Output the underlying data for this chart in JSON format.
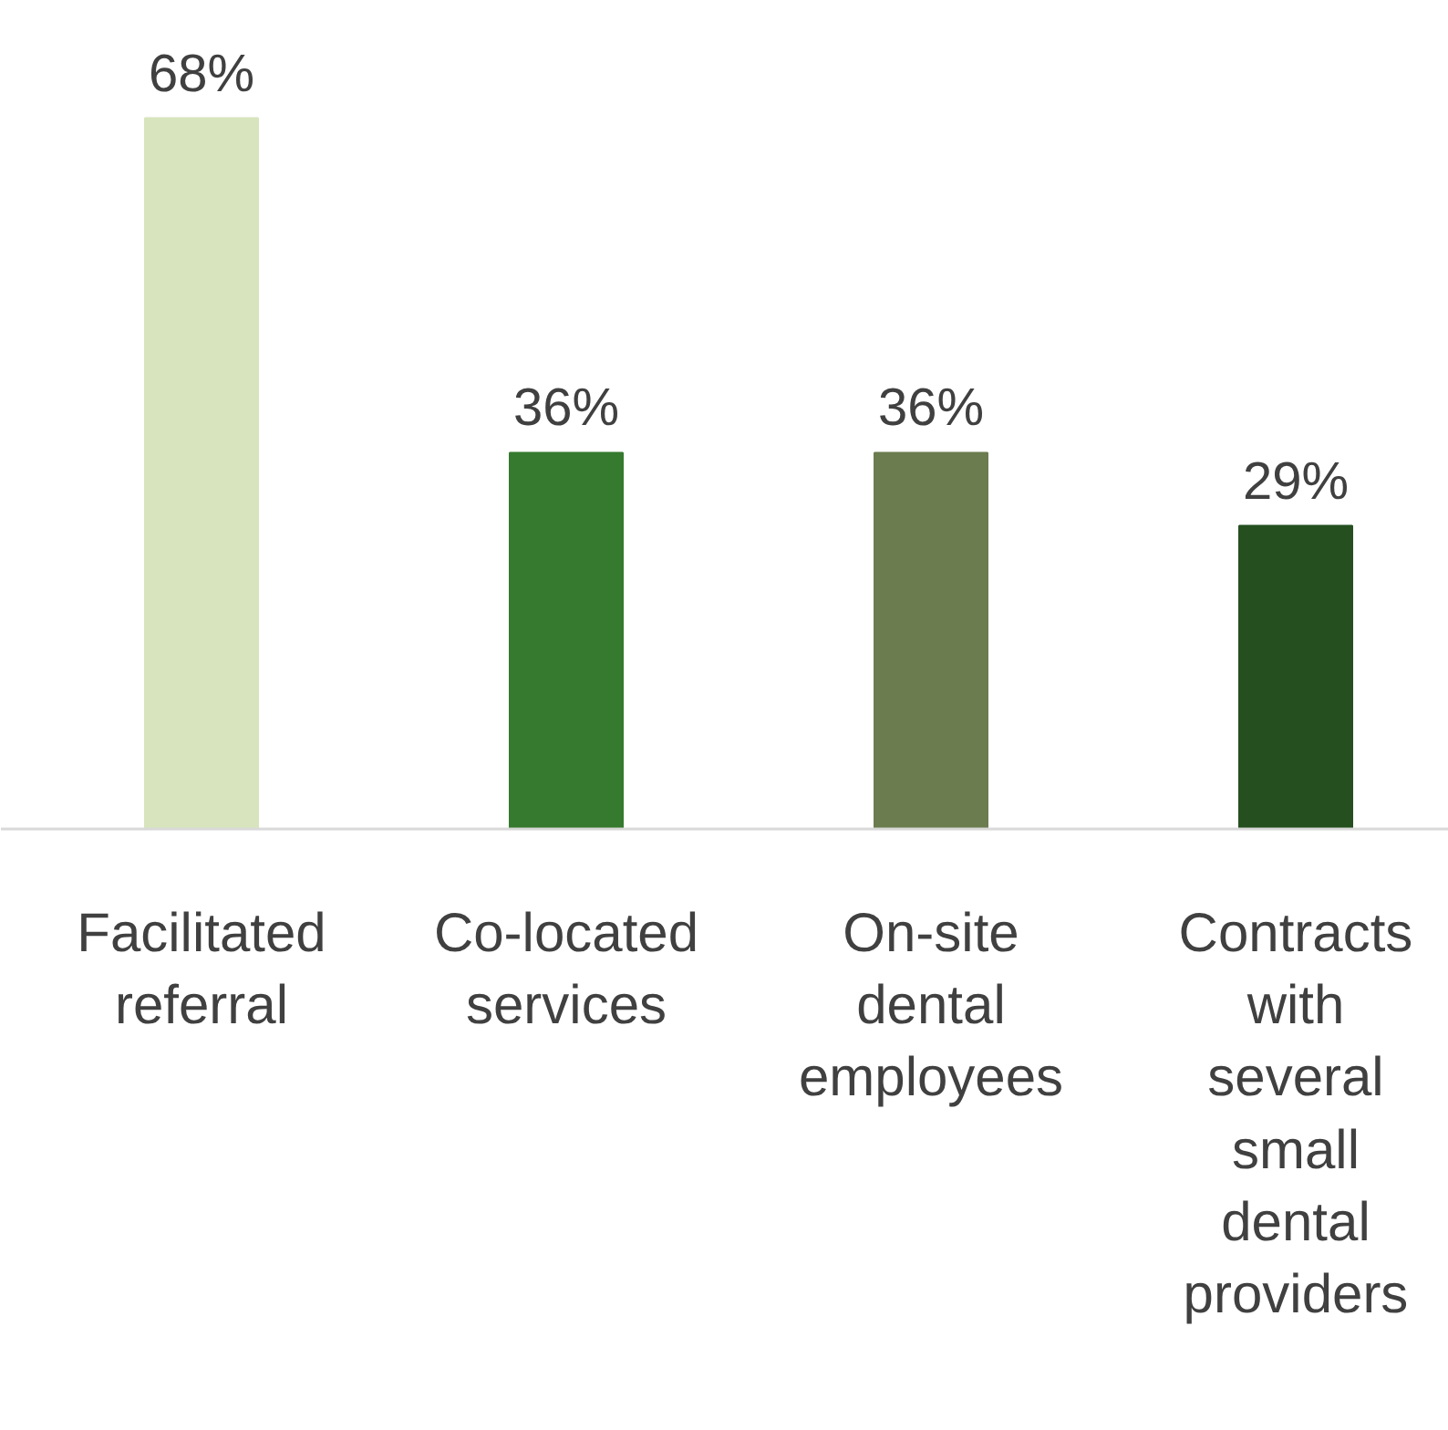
{
  "chart_data": {
    "type": "bar",
    "categories": [
      "Facilitated referral",
      "Co-located services",
      "On-site dental employees",
      "Contracts with several small dental providers"
    ],
    "values": [
      68,
      36,
      36,
      29
    ],
    "colors": [
      "#d7e4bd",
      "#357a2e",
      "#6b7c4e",
      "#254f1f"
    ],
    "value_labels": [
      "68%",
      "36%",
      "36%",
      "29%"
    ],
    "tick_labels": "x"
  }
}
